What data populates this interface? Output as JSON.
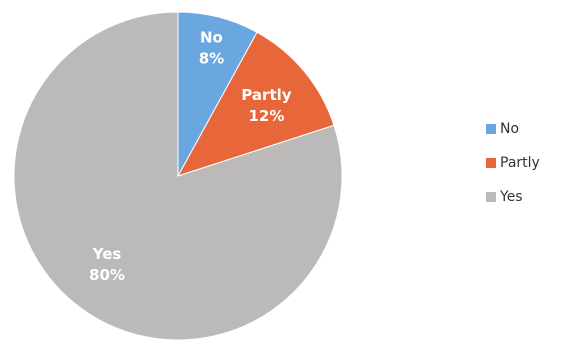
{
  "chart_data": {
    "type": "pie",
    "title": "",
    "slices": [
      {
        "label": "No",
        "value": 8,
        "value_label": "8%",
        "color": "#6aa6e0"
      },
      {
        "label": "Partly",
        "value": 12,
        "value_label": "12%",
        "color": "#e8673a"
      },
      {
        "label": "Yes",
        "value": 80,
        "value_label": "80%",
        "color": "#bcb9b9"
      }
    ],
    "start": "top",
    "direction": "clockwise",
    "legend_position": "right",
    "legend": [
      "No",
      "Partly",
      "Yes"
    ]
  }
}
